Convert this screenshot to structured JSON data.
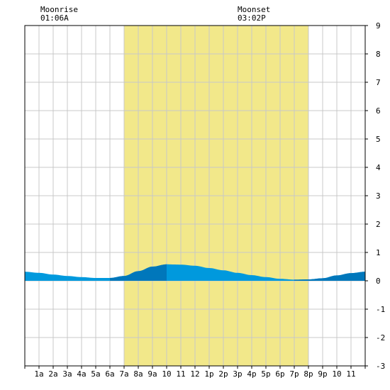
{
  "annotations": {
    "moonrise_label": "Moonrise",
    "moonrise_time": "01:06A",
    "moonset_label": "Moonset",
    "moonset_time": "03:02P"
  },
  "colors": {
    "daylight": "#f2e88a",
    "grid": "#c8c8c8",
    "tide_light": "#0099dd",
    "tide_dark": "#0077bb",
    "axis": "#000000"
  },
  "chart_data": {
    "type": "area",
    "title": "",
    "xlabel": "",
    "ylabel": "",
    "xlim": [
      0,
      24
    ],
    "ylim": [
      -3,
      9
    ],
    "y_ticks": [
      -3,
      -2,
      -1,
      0,
      1,
      2,
      3,
      4,
      5,
      6,
      7,
      8,
      9
    ],
    "x_tick_labels": [
      "1a",
      "2a",
      "3a",
      "4a",
      "5a",
      "6a",
      "7a",
      "8a",
      "9a",
      "10",
      "11",
      "12",
      "1p",
      "2p",
      "3p",
      "4p",
      "5p",
      "6p",
      "7p",
      "8p",
      "9p",
      "10",
      "11"
    ],
    "daylight": {
      "start_hour": 7,
      "end_hour": 20
    },
    "moonrise_hour": 1.1,
    "moonset_hour": 15.03,
    "series": [
      {
        "x": [
          0,
          1,
          2,
          3,
          4,
          5,
          6,
          7,
          8,
          9,
          10,
          11,
          12,
          13,
          14,
          15,
          16,
          17,
          18,
          19,
          20,
          21,
          22,
          23,
          24
        ],
        "values": [
          0.32,
          0.28,
          0.22,
          0.17,
          0.13,
          0.1,
          0.1,
          0.17,
          0.34,
          0.5,
          0.58,
          0.57,
          0.53,
          0.45,
          0.37,
          0.28,
          0.2,
          0.13,
          0.07,
          0.04,
          0.05,
          0.09,
          0.19,
          0.27,
          0.32
        ]
      }
    ]
  }
}
